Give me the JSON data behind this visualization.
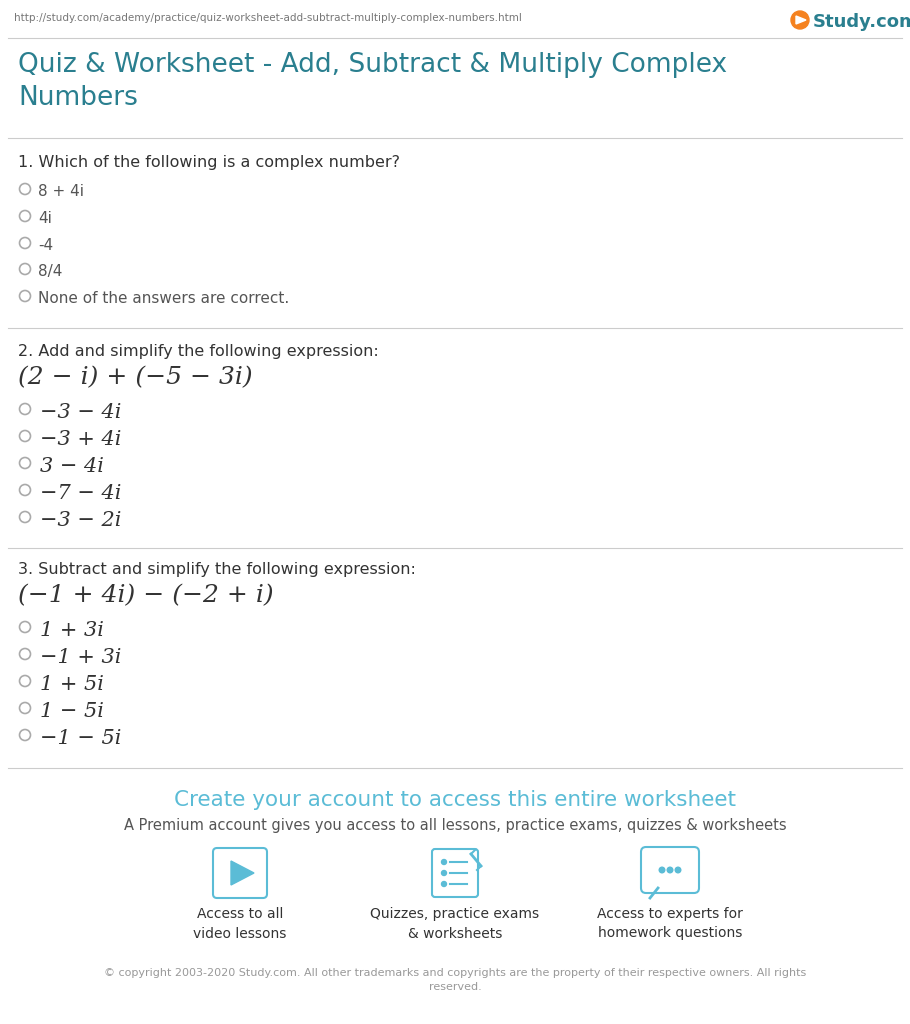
{
  "url": "http://study.com/academy/practice/quiz-worksheet-add-subtract-multiply-complex-numbers.html",
  "title": "Quiz & Worksheet - Add, Subtract & Multiply Complex\nNumbers",
  "title_color": "#2a7f8f",
  "bg_color": "#ffffff",
  "border_color": "#cccccc",
  "q1_label": "1. Which of the following is a complex number?",
  "q1_options": [
    "8 + 4i",
    "4i",
    "-4",
    "8/4",
    "None of the answers are correct."
  ],
  "q2_label": "2. Add and simplify the following expression:",
  "q2_expression": "(2 − i) + (−5 − 3i)",
  "q2_options_math": [
    "−3 − 4i",
    "−3 + 4i",
    "3 − 4i",
    "−7 − 4i",
    "−3 − 2i"
  ],
  "q3_label": "3. Subtract and simplify the following expression:",
  "q3_expression": "(−1 + 4i) − (−2 + i)",
  "q3_options_math": [
    "1 + 3i",
    "−1 + 3i",
    "1 + 5i",
    "1 − 5i",
    "−1 − 5i"
  ],
  "cta_text": "Create your account to access this entire worksheet",
  "cta_color": "#5bbcd6",
  "sub_text": "A Premium account gives you access to all lessons, practice exams, quizzes & worksheets",
  "icon1_label": "Access to all\nvideo lessons",
  "icon2_label": "Quizzes, practice exams\n& worksheets",
  "icon3_label": "Access to experts for\nhomework questions",
  "copyright": "© copyright 2003-2020 Study.com. All other trademarks and copyrights are the property of their respective owners. All rights\nreserved.",
  "radio_color": "#aaaaaa",
  "text_color": "#333333",
  "label_color": "#555555"
}
